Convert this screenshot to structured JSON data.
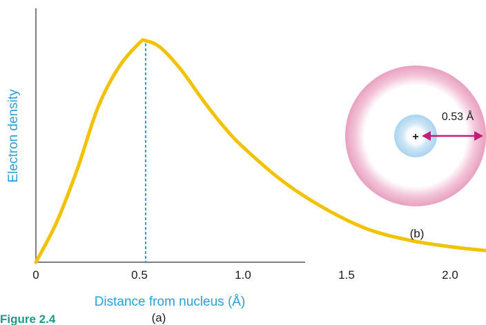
{
  "chart_data": {
    "type": "line",
    "xlabel": "Distance from nucleus (Å)",
    "ylabel": "Electron density",
    "x_ticks": [
      "0",
      "0.5",
      "1.0",
      "1.5",
      "2.0"
    ],
    "xlim": [
      0,
      2.6
    ],
    "ylim": [
      0,
      1.0
    ],
    "peak_x": 0.53,
    "series": [
      {
        "x": [
          0,
          0.1,
          0.2,
          0.3,
          0.4,
          0.5,
          0.53,
          0.6,
          0.7,
          0.8,
          0.9,
          1.0,
          1.2,
          1.4,
          1.6,
          1.8,
          2.0,
          2.2
        ],
        "values": [
          0,
          0.18,
          0.42,
          0.7,
          0.88,
          0.99,
          1.0,
          0.97,
          0.87,
          0.74,
          0.62,
          0.52,
          0.36,
          0.24,
          0.15,
          0.1,
          0.07,
          0.05
        ]
      }
    ]
  },
  "panel_a_label": "(a)",
  "panel_b_label": "(b)",
  "nucleus_symbol": "+",
  "radius_label": "0.53 Å",
  "caption": "Figure 2.4",
  "colors": {
    "curve": "#f2c200",
    "peak_line": "#2a9fd6",
    "axis_title": "#2a9fd6",
    "orbit_ring": "#e8a0c0",
    "nucleus_cloud": "#a9d4ef",
    "radius_arrow": "#c41d78",
    "caption": "#1a9a8a"
  }
}
